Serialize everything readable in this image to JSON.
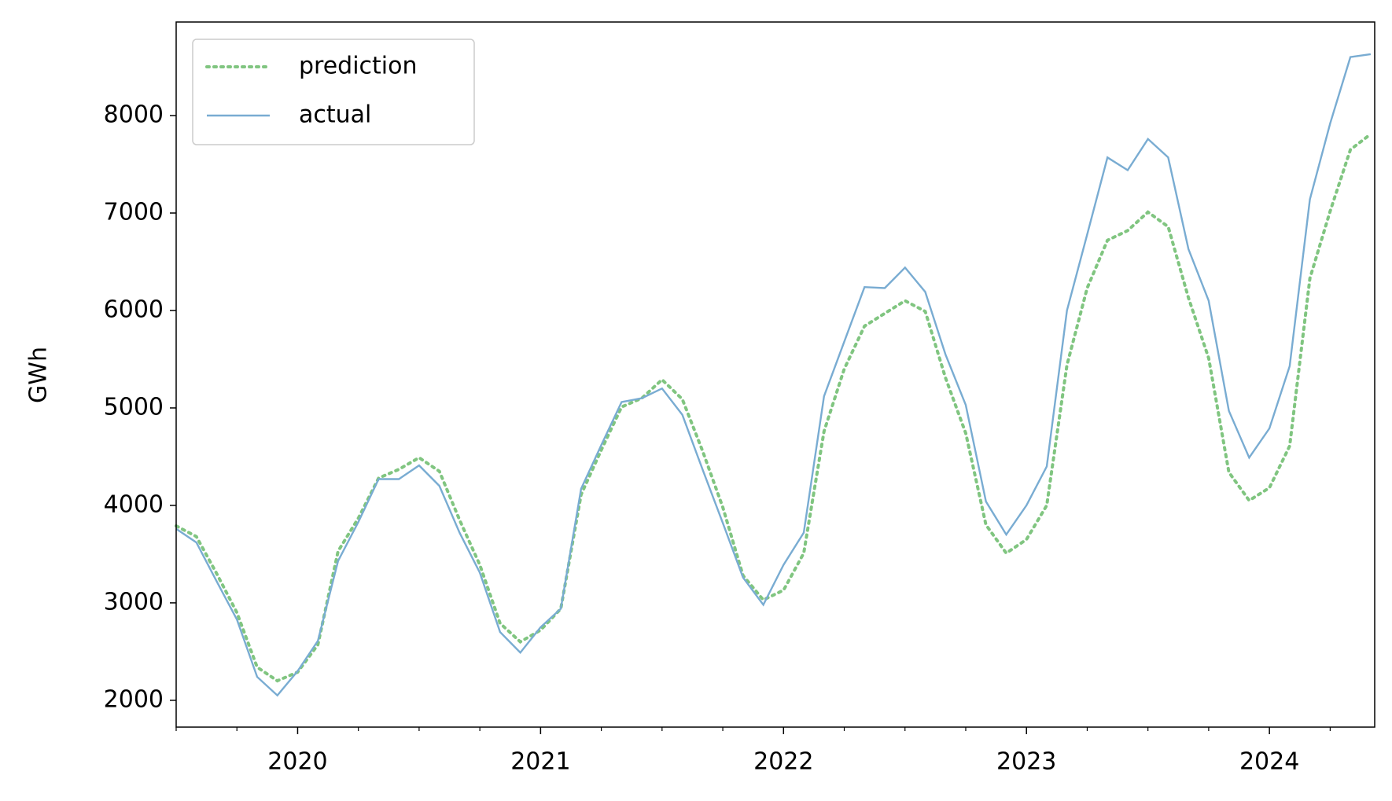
{
  "chart_data": {
    "type": "line",
    "y_label": "GWh",
    "categories": [
      null,
      null,
      null,
      null,
      null,
      null,
      "2020",
      null,
      null,
      null,
      null,
      null,
      null,
      null,
      null,
      null,
      null,
      null,
      "2021",
      null,
      null,
      null,
      null,
      null,
      null,
      null,
      null,
      null,
      null,
      null,
      "2022",
      null,
      null,
      null,
      null,
      null,
      null,
      null,
      null,
      null,
      null,
      null,
      "2023",
      null,
      null,
      null,
      null,
      null,
      null,
      null,
      null,
      null,
      null,
      null,
      "2024",
      null,
      null,
      null,
      null,
      null
    ],
    "series": [
      {
        "name": "prediction",
        "color": "#80c580",
        "dash": "dotted",
        "values": [
          3790,
          3680,
          3300,
          2900,
          2340,
          2200,
          2290,
          2570,
          3530,
          3870,
          4280,
          4370,
          4490,
          4350,
          3850,
          3390,
          2790,
          2600,
          2720,
          2940,
          4110,
          4570,
          5010,
          5100,
          5290,
          5090,
          4560,
          3980,
          3280,
          3030,
          3130,
          3510,
          4760,
          5400,
          5840,
          5970,
          6100,
          5990,
          5310,
          4740,
          3800,
          3510,
          3650,
          4000,
          5440,
          6230,
          6720,
          6820,
          7010,
          6860,
          6130,
          5510,
          4340,
          4050,
          4180,
          4610,
          6330,
          7020,
          7650,
          7810
        ]
      },
      {
        "name": "actual",
        "color": "#79acd2",
        "dash": "solid",
        "values": [
          3760,
          3620,
          3220,
          2830,
          2240,
          2050,
          2300,
          2610,
          3430,
          3830,
          4270,
          4270,
          4410,
          4200,
          3720,
          3310,
          2700,
          2490,
          2750,
          2940,
          4170,
          4620,
          5060,
          5100,
          5200,
          4930,
          4370,
          3820,
          3260,
          2980,
          3390,
          3720,
          5120,
          5680,
          6240,
          6230,
          6440,
          6190,
          5550,
          5030,
          4040,
          3700,
          4000,
          4400,
          6000,
          6780,
          7570,
          7440,
          7760,
          7570,
          6630,
          6100,
          4970,
          4490,
          4790,
          5430,
          7140,
          7920,
          8600,
          8630
        ]
      }
    ],
    "ylim": [
      1725,
      8960
    ],
    "yticks": [
      2000,
      3000,
      4000,
      5000,
      6000,
      7000,
      8000
    ],
    "legend": "upper left",
    "grid": false
  }
}
